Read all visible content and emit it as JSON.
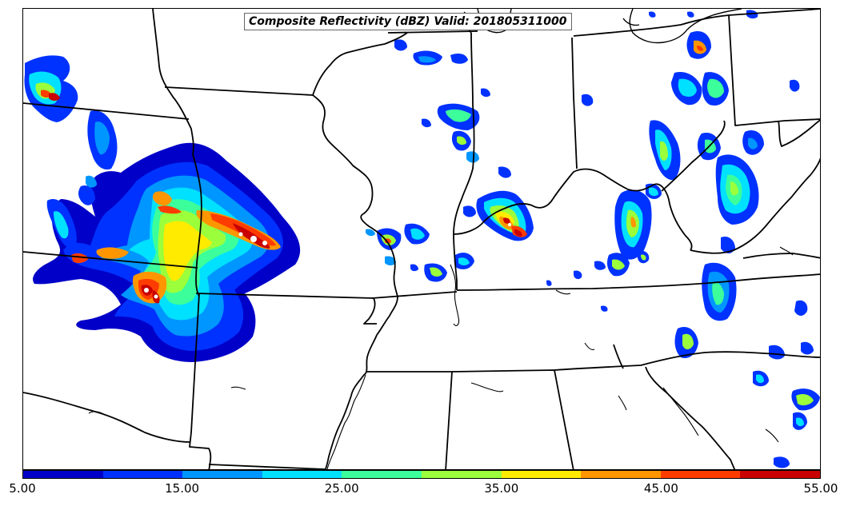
{
  "title": "Composite Reflectivity (dBZ) Valid: 201805311000",
  "colorbar": {
    "colors": [
      "#0000c8",
      "#0032ff",
      "#0096ff",
      "#00e1ff",
      "#3cff9b",
      "#9bff3c",
      "#ffeb00",
      "#ff9600",
      "#ff3c00",
      "#c80000"
    ],
    "tick_labels": [
      "5.00",
      "15.00",
      "25.00",
      "35.00",
      "45.00",
      "55.00"
    ]
  },
  "reflectivity_colors": {
    "low": "#0032ff",
    "mid_low": "#0096ff",
    "mid": "#00e1ff",
    "mid_high": "#3cff9b",
    "moderate": "#9bff3c",
    "strong": "#ffeb00",
    "heavy": "#ff9600",
    "intense": "#ff3c00",
    "extreme": "#c80000"
  }
}
